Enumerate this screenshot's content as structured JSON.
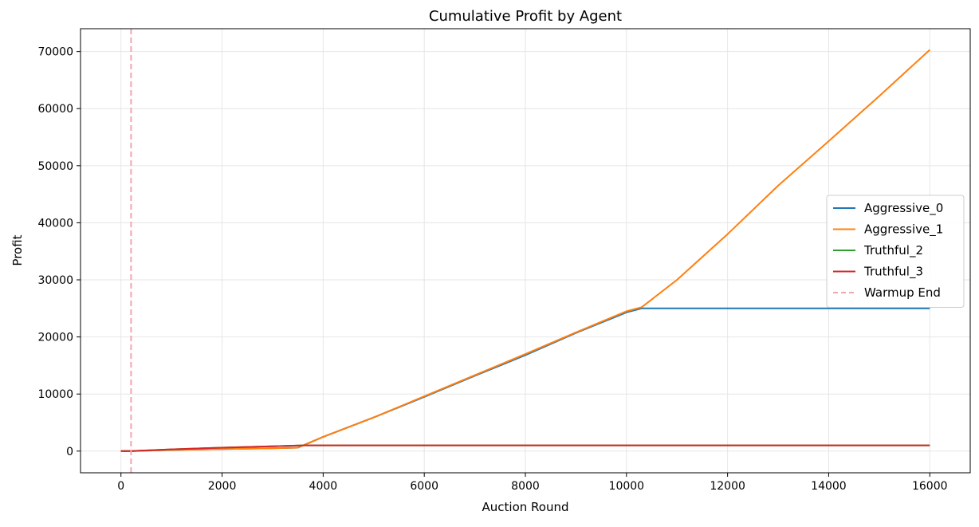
{
  "chart_data": {
    "type": "line",
    "title": "Cumulative Profit by Agent",
    "xlabel": "Auction Round",
    "ylabel": "Profit",
    "xlim": [
      -800,
      16800
    ],
    "ylim": [
      -3800,
      74000
    ],
    "xticks": [
      0,
      2000,
      4000,
      6000,
      8000,
      10000,
      12000,
      14000,
      16000
    ],
    "yticks": [
      0,
      10000,
      20000,
      30000,
      40000,
      50000,
      60000,
      70000
    ],
    "grid": true,
    "legend_position": "center-right",
    "series": [
      {
        "name": "Aggressive_0",
        "color": "#1f77b4",
        "points": [
          [
            0,
            0
          ],
          [
            200,
            0
          ],
          [
            1000,
            200
          ],
          [
            2000,
            350
          ],
          [
            3000,
            500
          ],
          [
            3500,
            600
          ],
          [
            4000,
            2500
          ],
          [
            5000,
            5900
          ],
          [
            6000,
            9500
          ],
          [
            7000,
            13200
          ],
          [
            8000,
            16800
          ],
          [
            9000,
            20700
          ],
          [
            10000,
            24300
          ],
          [
            10300,
            25000
          ],
          [
            12000,
            25000
          ],
          [
            14000,
            25000
          ],
          [
            16000,
            25000
          ]
        ]
      },
      {
        "name": "Aggressive_1",
        "color": "#ff7f0e",
        "points": [
          [
            0,
            0
          ],
          [
            200,
            0
          ],
          [
            1000,
            200
          ],
          [
            2000,
            350
          ],
          [
            3000,
            500
          ],
          [
            3500,
            600
          ],
          [
            4000,
            2500
          ],
          [
            5000,
            5900
          ],
          [
            6000,
            9600
          ],
          [
            7000,
            13300
          ],
          [
            8000,
            17000
          ],
          [
            9000,
            20800
          ],
          [
            10000,
            24500
          ],
          [
            10300,
            25200
          ],
          [
            11000,
            30000
          ],
          [
            12000,
            38000
          ],
          [
            13000,
            46500
          ],
          [
            14000,
            54300
          ],
          [
            15000,
            62200
          ],
          [
            16000,
            70300
          ]
        ]
      },
      {
        "name": "Truthful_2",
        "color": "#2ca02c",
        "points": [
          [
            0,
            0
          ],
          [
            200,
            0
          ],
          [
            1000,
            300
          ],
          [
            2000,
            600
          ],
          [
            3000,
            850
          ],
          [
            3600,
            1000
          ],
          [
            6000,
            1000
          ],
          [
            10000,
            1000
          ],
          [
            16000,
            1000
          ]
        ]
      },
      {
        "name": "Truthful_3",
        "color": "#d62728",
        "points": [
          [
            0,
            0
          ],
          [
            200,
            0
          ],
          [
            1000,
            300
          ],
          [
            2000,
            600
          ],
          [
            3000,
            850
          ],
          [
            3600,
            1000
          ],
          [
            6000,
            1000
          ],
          [
            10000,
            1000
          ],
          [
            16000,
            1000
          ]
        ]
      }
    ],
    "annotations": [
      {
        "type": "vline",
        "name": "Warmup End",
        "x": 200,
        "color": "#f4a6b0",
        "style": "dashed"
      }
    ]
  }
}
